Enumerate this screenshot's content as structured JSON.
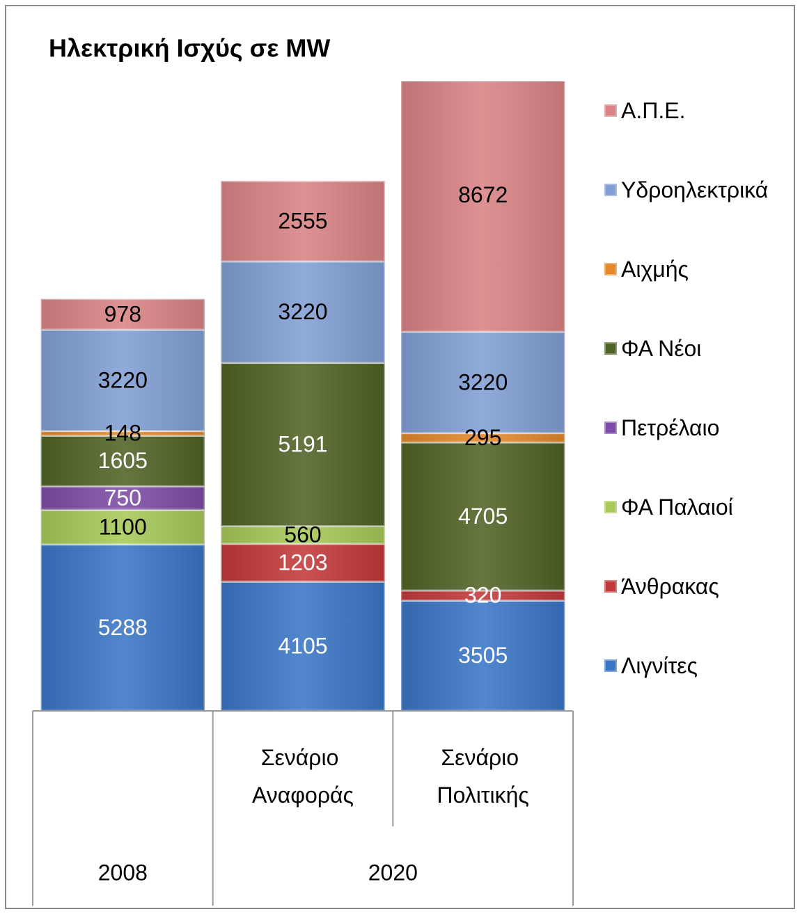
{
  "chart_data": {
    "type": "stacked_bar",
    "title": "Ηλεκτρική Ισχύς σε MW",
    "categories": [
      null,
      "Σενάριο Αναφοράς",
      "Σενάριο Πολιτικής"
    ],
    "category_groups": [
      {
        "label": "2008",
        "span": 1
      },
      {
        "label": "2020",
        "span": 2
      }
    ],
    "ylim": [
      0,
      20000
    ],
    "legend": "right",
    "series": [
      {
        "name": "Λιγνίτες",
        "color": "#3b76c6",
        "values": [
          5288,
          4105,
          3505
        ]
      },
      {
        "name": "Άνθρακας",
        "color": "#c23a3a",
        "values": [
          null,
          1203,
          320
        ]
      },
      {
        "name": "ΦΑ Παλαιοί",
        "color": "#a8c95a",
        "values": [
          1100,
          560,
          null
        ]
      },
      {
        "name": "Πετρέλαιο",
        "color": "#7d4ca6",
        "values": [
          750,
          null,
          null
        ]
      },
      {
        "name": "ΦΑ Νέοι",
        "color": "#506327",
        "values": [
          1605,
          5191,
          4705
        ]
      },
      {
        "name": "Αιχμής",
        "color": "#e4892a",
        "values": [
          148,
          null,
          295
        ]
      },
      {
        "name": "Υδροηλεκτρικά",
        "color": "#819fd4",
        "values": [
          3220,
          3220,
          3220
        ]
      },
      {
        "name": "Α.Π.Ε.",
        "color": "#da8384",
        "values": [
          978,
          2555,
          8672
        ]
      }
    ]
  }
}
